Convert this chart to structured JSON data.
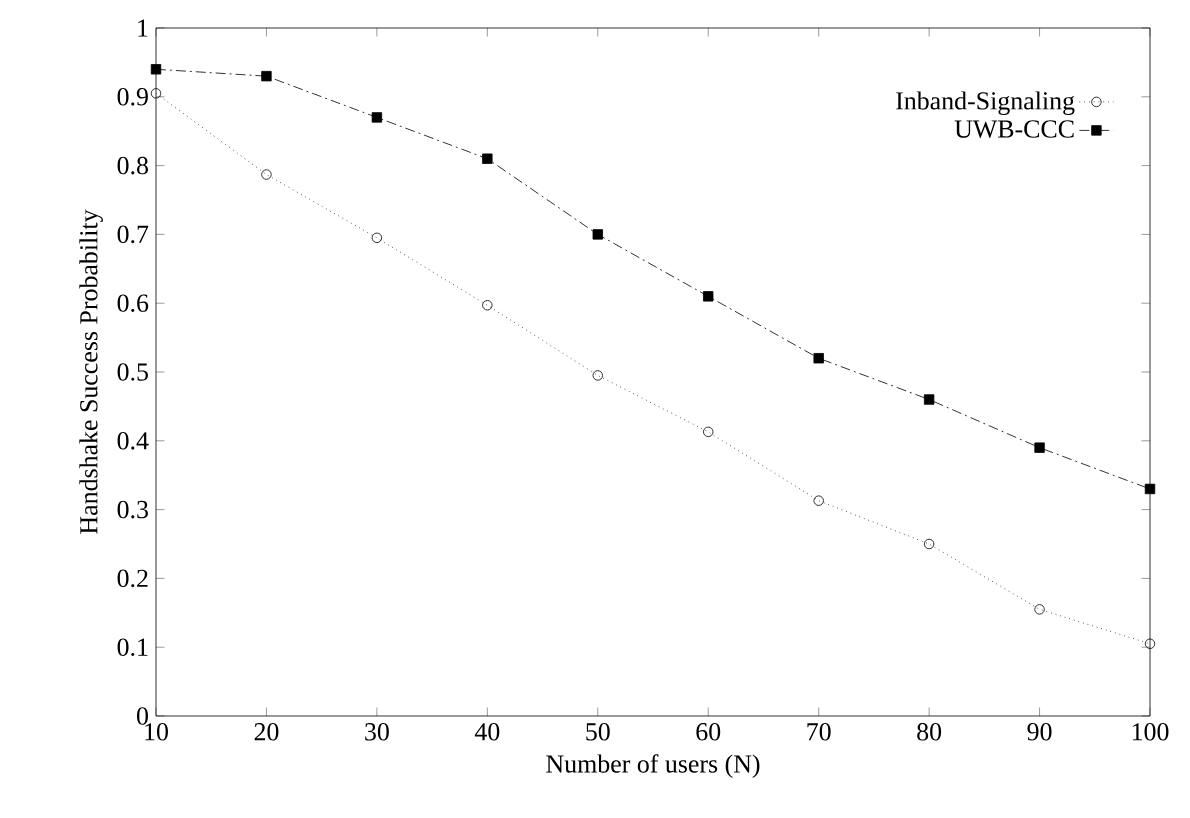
{
  "chart_data": {
    "type": "line",
    "xlabel": "Number of users (N)",
    "ylabel": "Handshake Success Probability",
    "x": [
      10,
      20,
      30,
      40,
      50,
      60,
      70,
      80,
      90,
      100
    ],
    "series": [
      {
        "name": "Inband-Signaling",
        "color": "#000000",
        "marker": "circle",
        "line_style": "dotted",
        "values": [
          0.905,
          0.787,
          0.695,
          0.597,
          0.495,
          0.413,
          0.313,
          0.25,
          0.155,
          0.105
        ]
      },
      {
        "name": "UWB-CCC",
        "color": "#000000",
        "marker": "square",
        "line_style": "dashdot",
        "values": [
          0.94,
          0.93,
          0.87,
          0.81,
          0.7,
          0.61,
          0.52,
          0.46,
          0.39,
          0.33
        ]
      }
    ],
    "xlim": [
      10,
      100
    ],
    "ylim": [
      0,
      1
    ],
    "xticks": [
      10,
      20,
      30,
      40,
      50,
      60,
      70,
      80,
      90,
      100
    ],
    "yticks": [
      0,
      0.1,
      0.2,
      0.3,
      0.4,
      0.5,
      0.6,
      0.7,
      0.8,
      0.9,
      1
    ],
    "grid": false,
    "legend": "top right"
  }
}
